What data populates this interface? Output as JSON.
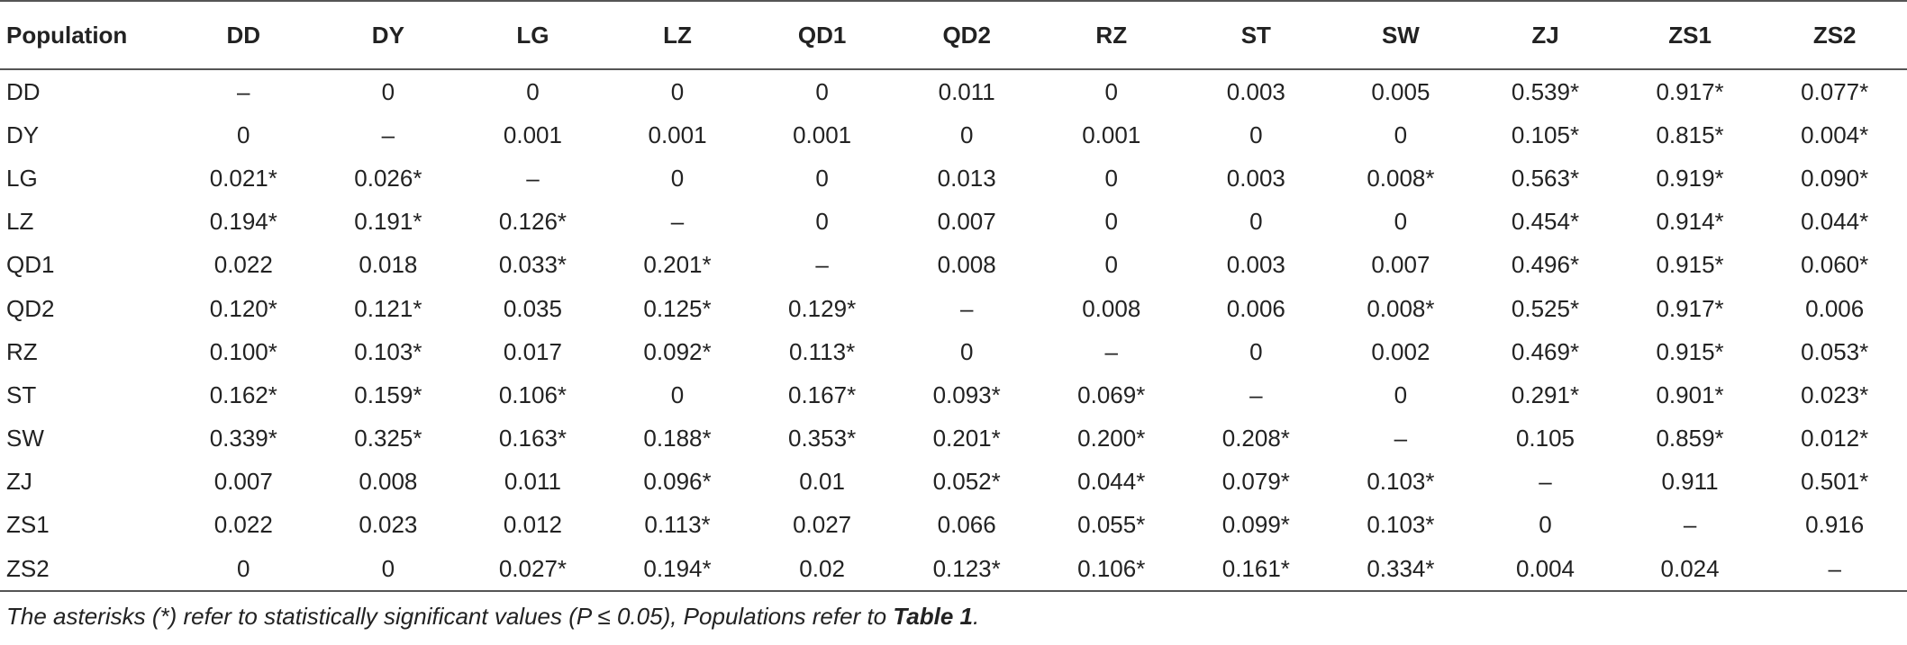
{
  "table": {
    "header": [
      "Population",
      "DD",
      "DY",
      "LG",
      "LZ",
      "QD1",
      "QD2",
      "RZ",
      "ST",
      "SW",
      "ZJ",
      "ZS1",
      "ZS2"
    ],
    "rows": [
      [
        "DD",
        "–",
        "0",
        "0",
        "0",
        "0",
        "0.011",
        "0",
        "0.003",
        "0.005",
        "0.539*",
        "0.917*",
        "0.077*"
      ],
      [
        "DY",
        "0",
        "–",
        "0.001",
        "0.001",
        "0.001",
        "0",
        "0.001",
        "0",
        "0",
        "0.105*",
        "0.815*",
        "0.004*"
      ],
      [
        "LG",
        "0.021*",
        "0.026*",
        "–",
        "0",
        "0",
        "0.013",
        "0",
        "0.003",
        "0.008*",
        "0.563*",
        "0.919*",
        "0.090*"
      ],
      [
        "LZ",
        "0.194*",
        "0.191*",
        "0.126*",
        "–",
        "0",
        "0.007",
        "0",
        "0",
        "0",
        "0.454*",
        "0.914*",
        "0.044*"
      ],
      [
        "QD1",
        "0.022",
        "0.018",
        "0.033*",
        "0.201*",
        "–",
        "0.008",
        "0",
        "0.003",
        "0.007",
        "0.496*",
        "0.915*",
        "0.060*"
      ],
      [
        "QD2",
        "0.120*",
        "0.121*",
        "0.035",
        "0.125*",
        "0.129*",
        "–",
        "0.008",
        "0.006",
        "0.008*",
        "0.525*",
        "0.917*",
        "0.006"
      ],
      [
        "RZ",
        "0.100*",
        "0.103*",
        "0.017",
        "0.092*",
        "0.113*",
        "0",
        "–",
        "0",
        "0.002",
        "0.469*",
        "0.915*",
        "0.053*"
      ],
      [
        "ST",
        "0.162*",
        "0.159*",
        "0.106*",
        "0",
        "0.167*",
        "0.093*",
        "0.069*",
        "–",
        "0",
        "0.291*",
        "0.901*",
        "0.023*"
      ],
      [
        "SW",
        "0.339*",
        "0.325*",
        "0.163*",
        "0.188*",
        "0.353*",
        "0.201*",
        "0.200*",
        "0.208*",
        "–",
        "0.105",
        "0.859*",
        "0.012*"
      ],
      [
        "ZJ",
        "0.007",
        "0.008",
        "0.011",
        "0.096*",
        "0.01",
        "0.052*",
        "0.044*",
        "0.079*",
        "0.103*",
        "–",
        "0.911",
        "0.501*"
      ],
      [
        "ZS1",
        "0.022",
        "0.023",
        "0.012",
        "0.113*",
        "0.027",
        "0.066",
        "0.055*",
        "0.099*",
        "0.103*",
        "0",
        "–",
        "0.916"
      ],
      [
        "ZS2",
        "0",
        "0",
        "0.027*",
        "0.194*",
        "0.02",
        "0.123*",
        "0.106*",
        "0.161*",
        "0.334*",
        "0.004",
        "0.024",
        "–"
      ]
    ]
  },
  "note": {
    "text": "The asterisks (*) refer to statistically significant values (P ≤ 0.05), Populations refer to ",
    "ref": "Table 1",
    "end": "."
  }
}
